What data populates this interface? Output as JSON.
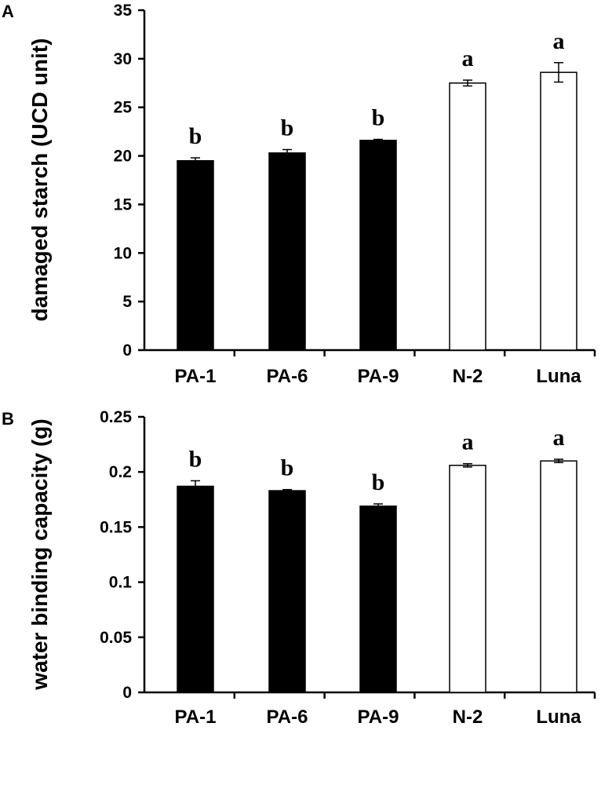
{
  "chart_data": [
    {
      "type": "bar",
      "panel": "A",
      "categories": [
        "PA-1",
        "PA-6",
        "PA-9",
        "N-2",
        "Luna"
      ],
      "values": [
        19.5,
        20.3,
        21.6,
        27.5,
        28.6
      ],
      "errors": [
        0.3,
        0.35,
        0.1,
        0.3,
        1.0
      ],
      "significance": [
        "b",
        "b",
        "b",
        "a",
        "a"
      ],
      "bar_colors": [
        "#000000",
        "#000000",
        "#000000",
        "#ffffff",
        "#ffffff"
      ],
      "xlabel": "",
      "ylabel": "damaged starch (UCD unit)",
      "ylim": [
        0,
        35
      ],
      "yticks": [
        "0",
        "5",
        "10",
        "15",
        "20",
        "25",
        "30",
        "35"
      ],
      "grid": false
    },
    {
      "type": "bar",
      "panel": "B",
      "categories": [
        "PA-1",
        "PA-6",
        "PA-9",
        "N-2",
        "Luna"
      ],
      "values": [
        0.187,
        0.183,
        0.169,
        0.206,
        0.21
      ],
      "errors": [
        0.005,
        0.001,
        0.002,
        0.0015,
        0.0015
      ],
      "significance": [
        "b",
        "b",
        "b",
        "a",
        "a"
      ],
      "bar_colors": [
        "#000000",
        "#000000",
        "#000000",
        "#ffffff",
        "#ffffff"
      ],
      "xlabel": "",
      "ylabel": "water binding capacity (g)",
      "ylim": [
        0,
        0.25
      ],
      "yticks": [
        "0",
        "0.05",
        "0.1",
        "0.15",
        "0.2",
        "0.25"
      ],
      "grid": false
    }
  ]
}
